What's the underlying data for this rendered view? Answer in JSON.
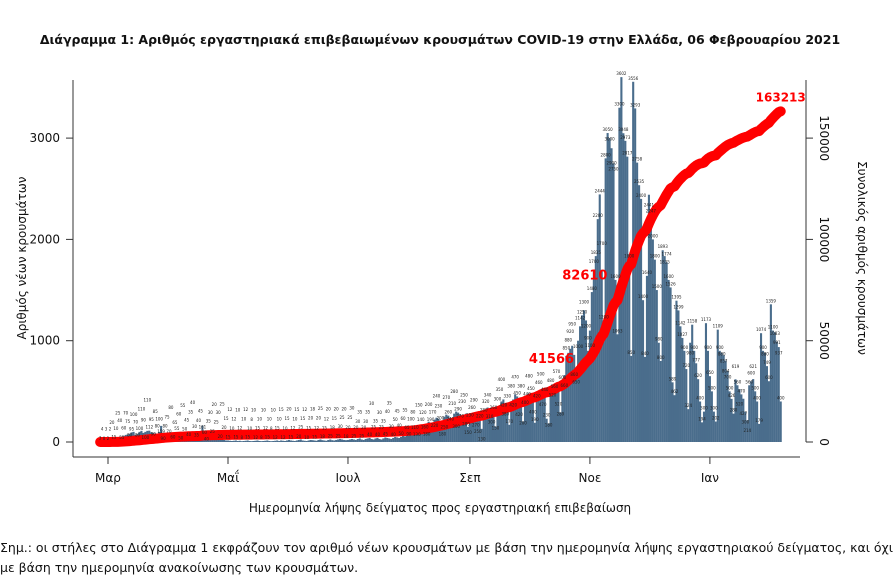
{
  "chart_data": {
    "type": "bar",
    "title": "Διάγραμμα 1: Αριθμός εργαστηριακά επιβεβαιωμένων κρουσμάτων COVID-19 στην Ελλάδα, 06 Φεβρουαρίου 2021",
    "xlabel": "Ημερομηνία λήψης δείγματος προς εργαστηριακή επιβεβαίωση",
    "ylabel": "Αριθμός νέων κρουσμάτων",
    "y2label": "Συνολικός αριθμός κρουσμάτων",
    "x_start_date": "2020-02-26",
    "x_end_date": "2021-02-06",
    "x_ticks": [
      {
        "label": "Μαρ",
        "date": "2020-03-01"
      },
      {
        "label": "Μαΐ",
        "date": "2020-05-01"
      },
      {
        "label": "Ιουλ",
        "date": "2020-07-01"
      },
      {
        "label": "Σεπ",
        "date": "2020-09-01"
      },
      {
        "label": "Νοε",
        "date": "2020-11-01"
      },
      {
        "label": "Ιαν",
        "date": "2021-01-01"
      }
    ],
    "y_ticks": [
      "0",
      "1000",
      "2000",
      "3000"
    ],
    "y2_ticks": [
      "0",
      "50000",
      "100000",
      "150000"
    ],
    "ylim": [
      0,
      3600
    ],
    "y2lim": [
      0,
      180000
    ],
    "bar_color": "#4a6d8c",
    "line_color": "#ff0000",
    "series": [
      {
        "type": "bar",
        "axis": "left",
        "values": [
          3,
          4,
          0,
          3,
          2,
          2,
          20,
          15,
          10,
          25,
          40,
          55,
          60,
          70,
          75,
          80,
          95,
          100,
          70,
          80,
          100,
          110,
          90,
          100,
          110,
          112,
          95,
          90,
          85,
          80,
          100,
          159,
          90,
          80,
          75,
          70,
          80,
          60,
          65,
          55,
          60,
          50,
          55,
          50,
          45,
          40,
          35,
          40,
          30,
          35,
          40,
          45,
          161,
          60,
          40,
          35,
          30,
          25,
          20,
          25,
          30,
          20,
          25,
          20,
          15,
          15,
          12,
          10,
          12,
          15,
          10,
          12,
          8,
          10,
          12,
          15,
          10,
          8,
          10,
          12,
          15,
          10,
          8,
          10,
          12,
          15,
          10,
          8,
          10,
          12,
          15,
          10,
          15,
          12,
          10,
          15,
          20,
          15,
          12,
          10,
          15,
          20,
          25,
          15,
          12,
          10,
          15,
          20,
          18,
          15,
          12,
          20,
          25,
          18,
          15,
          12,
          20,
          25,
          18,
          15,
          20,
          25,
          30,
          25,
          20,
          18,
          20,
          25,
          30,
          25,
          20,
          30,
          35,
          25,
          20,
          30,
          35,
          40,
          30,
          25,
          35,
          40,
          30,
          25,
          35,
          45,
          40,
          35,
          30,
          40,
          50,
          45,
          40,
          50,
          60,
          55,
          65,
          90,
          100,
          80,
          110,
          130,
          150,
          140,
          120,
          160,
          180,
          200,
          190,
          170,
          220,
          240,
          230,
          200,
          180,
          250,
          270,
          260,
          240,
          210,
          280,
          300,
          290,
          270,
          230,
          250,
          280,
          150,
          230,
          260,
          290,
          270,
          250,
          220,
          130,
          280,
          320,
          340,
          310,
          300,
          260,
          150,
          300,
          350,
          400,
          420,
          380,
          330,
          170,
          380,
          420,
          470,
          450,
          420,
          380,
          200,
          400,
          440,
          480,
          450,
          400,
          190,
          420,
          460,
          500,
          470,
          440,
          230,
          180,
          480,
          520,
          560,
          570,
          520,
          289,
          600,
          660,
          850,
          880,
          920,
          950,
          860,
          650,
          1000,
          1142,
          1250,
          1300,
          1200,
          900,
          1100,
          1480,
          1700,
          1835,
          2200,
          2444,
          1700,
          1200,
          2800,
          3050,
          3000,
          2900,
          2750,
          1600,
          1063,
          3300,
          3602,
          3048,
          2973,
          2817,
          1800,
          850,
          3556,
          3293,
          2758,
          2535,
          2400,
          1400,
          840,
          1640,
          2441,
          2247,
          2000,
          1800,
          1500,
          980,
          800,
          1893,
          1835,
          1774,
          1600,
          1526,
          589,
          462,
          1395,
          1299,
          1142,
          1027,
          900,
          720,
          324,
          980,
          1158,
          900,
          777,
          620,
          400,
          194,
          300,
          1173,
          900,
          650,
          500,
          300,
          202,
          1109,
          900,
          880,
          857,
          804,
          700,
          500,
          426,
          280,
          619,
          560,
          520,
          470,
          427,
          300,
          214,
          560,
          600,
          621,
          500,
          400,
          179,
          1074,
          900,
          880,
          749,
          600,
          1359,
          1100,
          1083,
          991,
          937,
          400
        ]
      },
      {
        "type": "line",
        "axis": "right",
        "cumulative": true
      }
    ],
    "annotations": [
      {
        "text": "41566",
        "date": "2020-10-28",
        "value": 41566
      },
      {
        "text": "82610",
        "date": "2020-11-14",
        "value": 82610
      },
      {
        "text": "163213",
        "date": "2021-02-06",
        "value": 163213
      }
    ]
  },
  "note": {
    "line1": "Σημ.:  οι στήλες στο Διάγραμμα 1 εκφράζουν τον αριθμό νέων κρουσμάτων με βάση την ημερομηνία λήψης εργαστηριακού δείγματος, και όχι",
    "line2": "με βάση την ημερομηνία ανακοίνωσης των κρουσμάτων."
  }
}
